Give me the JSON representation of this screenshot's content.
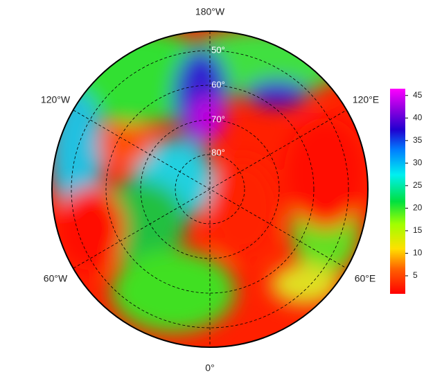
{
  "map": {
    "longitude_labels": [
      "180°W",
      "120°E",
      "60°E",
      "0°",
      "60°W",
      "120°W"
    ],
    "latitude_labels": [
      "50°",
      "60°",
      "70°",
      "80°"
    ],
    "colorbar": {
      "range": [
        1,
        46.5
      ],
      "ticks": [
        5,
        10,
        15,
        20,
        25,
        30,
        35,
        40,
        45
      ]
    }
  }
}
